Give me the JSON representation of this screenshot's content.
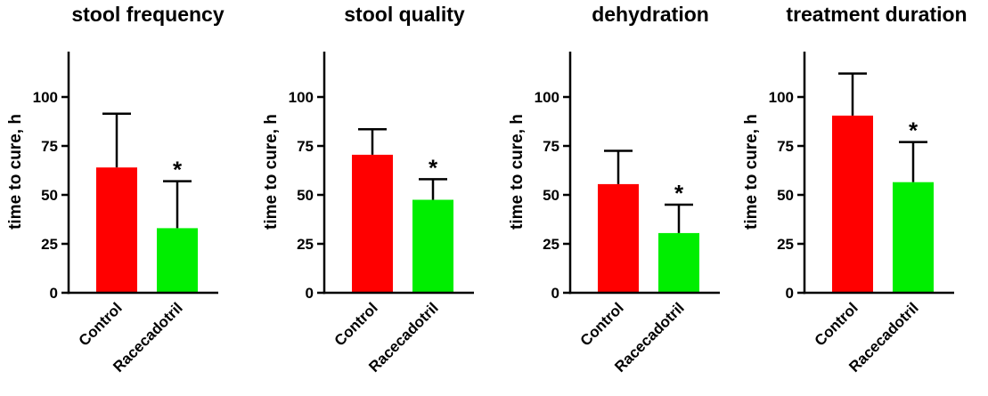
{
  "chart_data": [
    {
      "type": "bar",
      "title": "stool frequency",
      "ylabel": "time to cure, h",
      "ylim": [
        0,
        120
      ],
      "yticks": [
        0,
        25,
        50,
        75,
        100
      ],
      "categories": [
        "Control",
        "Racecadotril"
      ],
      "values": [
        64,
        33
      ],
      "error_upper": [
        91.5,
        57
      ],
      "annotations": [
        "",
        "*"
      ],
      "colors": [
        "#ff0000",
        "#00ee00"
      ]
    },
    {
      "type": "bar",
      "title": "stool quality",
      "ylabel": "time to cure, h",
      "ylim": [
        0,
        120
      ],
      "yticks": [
        0,
        25,
        50,
        75,
        100
      ],
      "categories": [
        "Control",
        "Racecadotril"
      ],
      "values": [
        70.5,
        47.5
      ],
      "error_upper": [
        83.5,
        58
      ],
      "annotations": [
        "",
        "*"
      ],
      "colors": [
        "#ff0000",
        "#00ee00"
      ]
    },
    {
      "type": "bar",
      "title": "dehydration",
      "ylabel": "time to cure, h",
      "ylim": [
        0,
        120
      ],
      "yticks": [
        0,
        25,
        50,
        75,
        100
      ],
      "categories": [
        "Control",
        "Racecadotril"
      ],
      "values": [
        55.5,
        30.5
      ],
      "error_upper": [
        72.5,
        45
      ],
      "annotations": [
        "",
        "*"
      ],
      "colors": [
        "#ff0000",
        "#00ee00"
      ]
    },
    {
      "type": "bar",
      "title": "treatment duration",
      "ylabel": "time to cure, h",
      "ylim": [
        0,
        120
      ],
      "yticks": [
        0,
        25,
        50,
        75,
        100
      ],
      "categories": [
        "Control",
        "Racecadotril"
      ],
      "values": [
        90.5,
        56.5
      ],
      "error_upper": [
        112,
        77
      ],
      "annotations": [
        "",
        "*"
      ],
      "colors": [
        "#ff0000",
        "#00ee00"
      ]
    }
  ]
}
